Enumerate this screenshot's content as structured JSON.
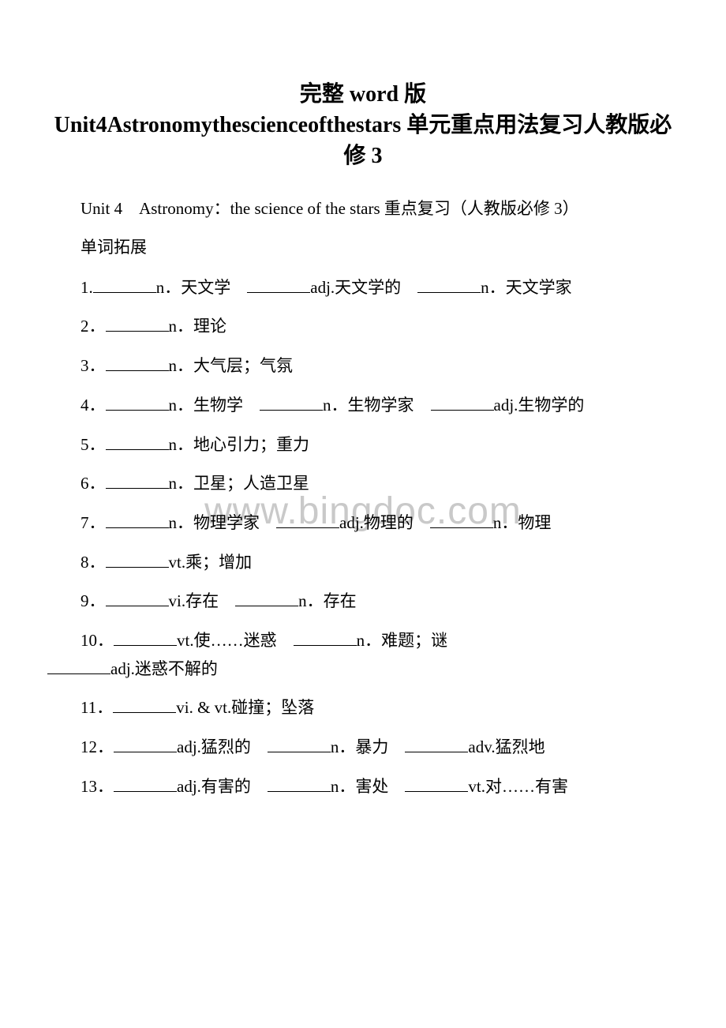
{
  "title": {
    "line1": "完整 word 版",
    "line2": "Unit4Astronomythescienceofthestars 单元重点用法复习人教版必修 3"
  },
  "subtitle": "Unit 4　Astronomy：the science of the stars 重点复习（人教版必修 3）",
  "section_label": "单词拓展",
  "watermark": "www.bingdoc.com",
  "items": [
    {
      "num": "1.",
      "parts": [
        "n．天文学　",
        "adj.天文学的　",
        "n．天文学家"
      ]
    },
    {
      "num": "2．",
      "parts": [
        "n．理论"
      ]
    },
    {
      "num": "3．",
      "parts": [
        "n．大气层；气氛"
      ]
    },
    {
      "num": "4．",
      "parts": [
        "n．生物学　",
        "n．生物学家　",
        "adj.生物学的"
      ]
    },
    {
      "num": "5．",
      "parts": [
        "n．地心引力；重力"
      ]
    },
    {
      "num": "6．",
      "parts": [
        "n．卫星；人造卫星"
      ]
    },
    {
      "num": "7．",
      "parts": [
        "n．物理学家　",
        "adj.物理的　",
        "n．物理"
      ]
    },
    {
      "num": "8．",
      "parts": [
        "vt.乘；增加"
      ]
    },
    {
      "num": "9．",
      "parts": [
        "vi.存在　",
        "n．存在"
      ]
    },
    {
      "num": "10．",
      "parts": [
        "vt.使……迷惑　",
        "n．难题；谜　",
        "adj.迷惑不解的"
      ]
    },
    {
      "num": "11．",
      "parts": [
        "vi. & vt.碰撞；坠落"
      ]
    },
    {
      "num": "12．",
      "parts": [
        "adj.猛烈的　",
        "n．暴力　",
        "adv.猛烈地"
      ]
    },
    {
      "num": "13．",
      "parts": [
        "adj.有害的　",
        "n．害处　",
        "vt.对……有害"
      ]
    }
  ],
  "colors": {
    "text": "#000000",
    "background": "#ffffff",
    "watermark": "#c9c9c9",
    "underline": "#000000"
  },
  "typography": {
    "title_fontsize": 28,
    "body_fontsize": 21,
    "watermark_fontsize": 48,
    "font_family": "SimSun"
  }
}
